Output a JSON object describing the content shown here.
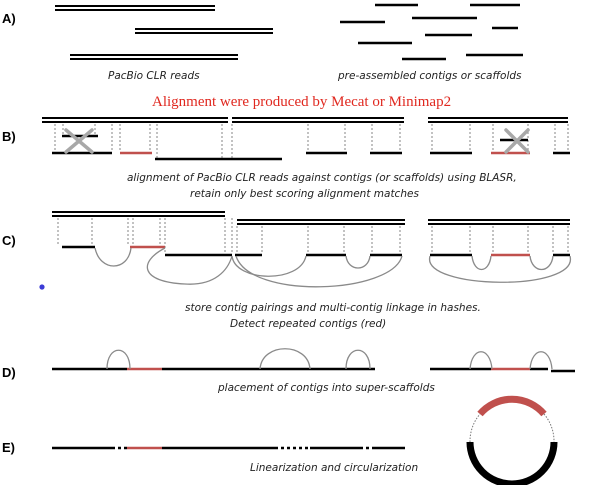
{
  "steps": {
    "a": "A)",
    "b": "B)",
    "c": "C)",
    "d": "D)",
    "e": "E)"
  },
  "labels": {
    "pacbio_reads": "PacBio CLR reads",
    "contigs": "pre-assembled contigs or scaffolds",
    "alignment_tool": "Alignment were produced by Mecat or Minimap2",
    "b_line1": "alignment of PacBio CLR reads against contigs (or scaffolds) using BLASR,",
    "b_line2": "retain only best scoring alignment matches",
    "c_line1": "store contig pairings and multi-contig linkage in hashes.",
    "c_line2": "Detect repeated contigs (red)",
    "d_text": "placement of contigs into super-scaffolds",
    "e_text": "Linearization and circularization"
  },
  "colors": {
    "contig": "#000000",
    "repeat": "#c0504d",
    "title": "#e0281f",
    "dot": "#3b3bd6"
  }
}
